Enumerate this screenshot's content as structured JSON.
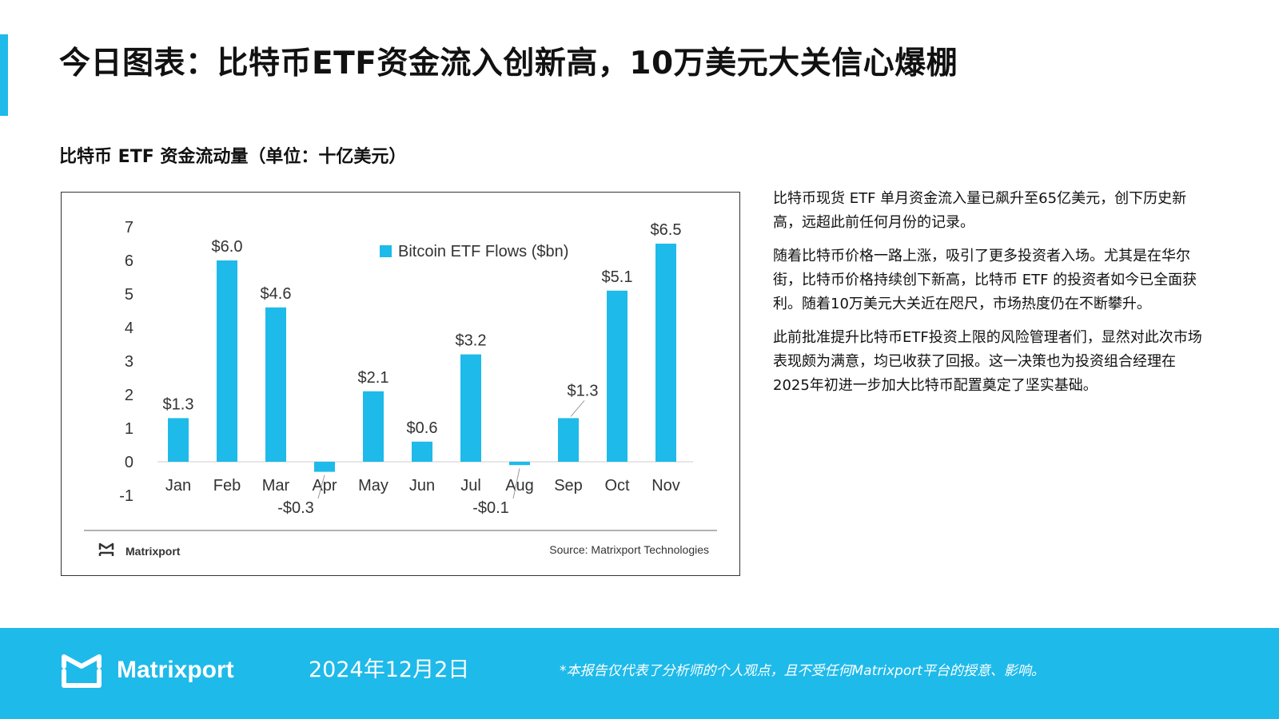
{
  "page": {
    "title": "今日图表：比特币ETF资金流入创新高，10万美元大关信心爆棚",
    "chart_heading": "比特币 ETF 资金流动量（单位：十亿美元）"
  },
  "chart_data": {
    "type": "bar",
    "categories": [
      "Jan",
      "Feb",
      "Mar",
      "Apr",
      "May",
      "Jun",
      "Jul",
      "Aug",
      "Sep",
      "Oct",
      "Nov"
    ],
    "series": [
      {
        "name": "Bitcoin ETF Flows ($bn)",
        "values": [
          1.3,
          6.0,
          4.6,
          -0.3,
          2.1,
          0.6,
          3.2,
          -0.1,
          1.3,
          5.1,
          6.5
        ]
      }
    ],
    "data_labels": [
      "$1.3",
      "$6.0",
      "$4.6",
      "-$0.3",
      "$2.1",
      "$0.6",
      "$3.2",
      "-$0.1",
      "$1.3",
      "$5.1",
      "$6.5"
    ],
    "ylim": [
      -1,
      7
    ],
    "yticks": [
      "-1",
      "0",
      "1",
      "2",
      "3",
      "4",
      "5",
      "6",
      "7"
    ],
    "title": "",
    "xlabel": "",
    "ylabel": "",
    "legend_position": "top-right",
    "grid": false,
    "bar_color": "#1ebaea",
    "source": "Source: Matrixport Technologies",
    "logo_text": "Matrixport"
  },
  "side_text": {
    "p1": "比特币现货 ETF 单月资金流入量已飙升至65亿美元，创下历史新高，远超此前任何月份的记录。",
    "p2": "随着比特币价格一路上涨，吸引了更多投资者入场。尤其是在华尔街，比特币价格持续创下新高，比特币 ETF 的投资者如今已全面获利。随着10万美元大关近在咫尺，市场热度仍在不断攀升。",
    "p3": "此前批准提升比特币ETF投资上限的风险管理者们，显然对此次市场表现颇为满意，均已收获了回报。这一决策也为投资组合经理在2025年初进一步加大比特币配置奠定了坚实基础。"
  },
  "footer": {
    "brand": "Matrixport",
    "date": "2024年12月2日",
    "disclaimer": "*本报告仅代表了分析师的个人观点，且不受任何Matrixport平台的授意、影响。"
  },
  "colors": {
    "accent": "#1ebaea",
    "text": "#111111",
    "axis_text": "#333333"
  }
}
